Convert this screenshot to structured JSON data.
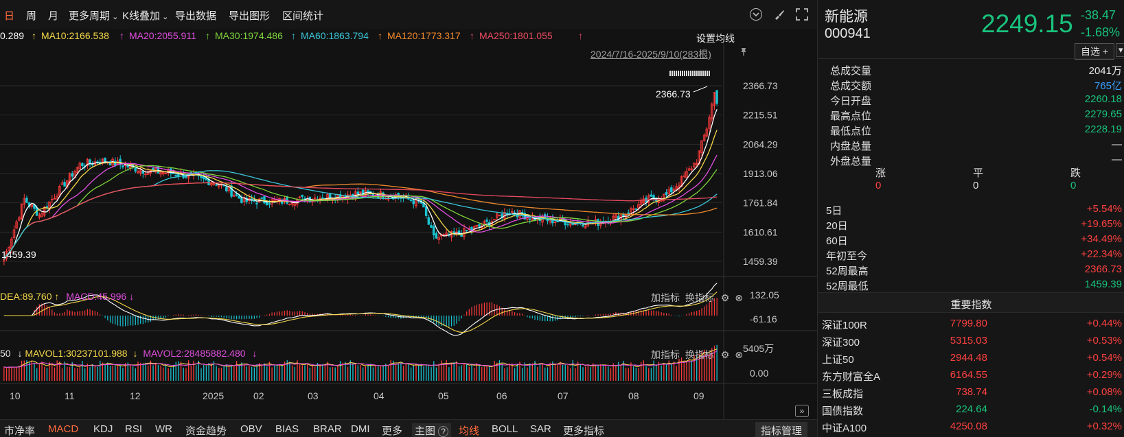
{
  "toolbar": {
    "items": [
      "日",
      "周",
      "月",
      "更多周期",
      "K线叠加",
      "导出数据",
      "导出图形",
      "区间统计"
    ],
    "active_index": 0
  },
  "ma_line": {
    "ma5": "0.289",
    "ma10": "MA10:2166.538",
    "ma20": "MA20:2055.911",
    "ma30": "MA30:1974.486",
    "ma60": "MA60:1863.794",
    "ma120": "MA120:1773.317",
    "ma250": "MA250:1801.055",
    "up_arrow": "↑",
    "settings": "设置均线"
  },
  "colors": {
    "ma5": "#ffffff",
    "ma10": "#f5d84a",
    "ma20": "#e14fe0",
    "ma30": "#7fd43b",
    "ma60": "#38c6d8",
    "ma120": "#f08a2c",
    "ma250": "#e84a60",
    "up": "#ff3b3b",
    "down": "#19c3d1"
  },
  "main": {
    "range_label": "2024/7/16-2025/9/10(283根)",
    "high_label": "2366.73",
    "low_label": "1459.39",
    "price_axis": [
      "2366.73",
      "2215.51",
      "2064.29",
      "1913.06",
      "1761.84",
      "1610.61",
      "1459.39"
    ],
    "month_axis": [
      "10",
      "11",
      "12",
      "2025",
      "02",
      "03",
      "04",
      "05",
      "06",
      "07",
      "08",
      "09"
    ]
  },
  "macd": {
    "dea": "DEA:89.760",
    "dea_arrow": "↑",
    "macd": "MACD:45.996",
    "macd_arrow": "↓",
    "axis": [
      "132.05",
      "-61.16"
    ],
    "add_indicator": "加指标",
    "switch_indicator": "换指标"
  },
  "vol": {
    "head": "50",
    "mavol1_arrow": "↓",
    "mavol1": "MAVOL1:30237101.988",
    "mavol2_arrow": "↓",
    "mavol2": "MAVOL2:28485882.480",
    "mavol2_tail": "↓",
    "axis": [
      "5405万",
      "0.00"
    ],
    "add_indicator": "加指标",
    "switch_indicator": "换指标"
  },
  "bottom_bar": {
    "items": [
      "市净率",
      "MACD",
      "KDJ",
      "RSI",
      "WR",
      "资金趋势",
      "OBV",
      "BIAS",
      "BRAR",
      "DMI",
      "更多",
      "主图",
      "均线",
      "BOLL",
      "SAR",
      "更多指标"
    ],
    "active": [
      "MACD",
      "均线"
    ],
    "manage": "指标管理"
  },
  "stock": {
    "name": "新能源",
    "code": "000941",
    "price": "2249.15",
    "change": "-38.47",
    "change_pct": "-1.68%",
    "watchlist": "自选"
  },
  "quote": [
    {
      "label": "总成交量",
      "value": "2041万",
      "color": "white"
    },
    {
      "label": "总成交额",
      "value": "765亿",
      "color": "blue"
    },
    {
      "label": "今日开盘",
      "value": "2260.18",
      "color": "green"
    },
    {
      "label": "最高点位",
      "value": "2279.65",
      "color": "green"
    },
    {
      "label": "最低点位",
      "value": "2228.19",
      "color": "green"
    },
    {
      "label": "内盘总量",
      "value": "—",
      "color": "white"
    },
    {
      "label": "外盘总量",
      "value": "—",
      "color": "white"
    }
  ],
  "breadth": {
    "labels": [
      "涨",
      "平",
      "跌"
    ],
    "values": [
      "0",
      "0",
      "0"
    ]
  },
  "periods": [
    {
      "label": "5日",
      "value": "+5.54%",
      "color": "red"
    },
    {
      "label": "20日",
      "value": "+19.65%",
      "color": "red"
    },
    {
      "label": "60日",
      "value": "+34.49%",
      "color": "red"
    },
    {
      "label": "年初至今",
      "value": "+22.34%",
      "color": "red"
    },
    {
      "label": "52周最高",
      "value": "2366.73",
      "color": "red"
    },
    {
      "label": "52周最低",
      "value": "1459.39",
      "color": "green"
    }
  ],
  "indices": {
    "title": "重要指数",
    "rows": [
      {
        "name": "深证100R",
        "price": "7799.80",
        "pct": "+0.44%",
        "color": "red"
      },
      {
        "name": "深证300",
        "price": "5315.03",
        "pct": "+0.53%",
        "color": "red"
      },
      {
        "name": "上证50",
        "price": "2944.48",
        "pct": "+0.54%",
        "color": "red"
      },
      {
        "name": "东方财富全A",
        "price": "6164.55",
        "pct": "+0.29%",
        "color": "red"
      },
      {
        "name": "三板成指",
        "price": "738.74",
        "pct": "+0.08%",
        "color": "red"
      },
      {
        "name": "国债指数",
        "price": "224.64",
        "pct": "-0.14%",
        "color": "green"
      },
      {
        "name": "中证A100",
        "price": "4250.08",
        "pct": "+0.32%",
        "color": "red"
      }
    ]
  }
}
